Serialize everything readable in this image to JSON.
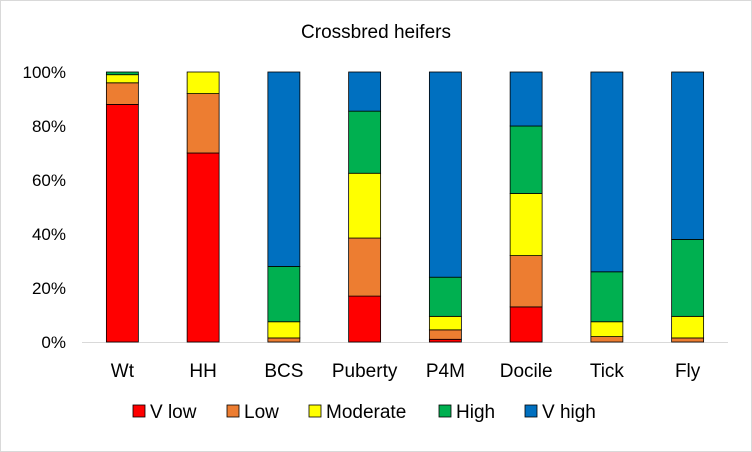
{
  "chart_data": {
    "type": "bar",
    "stacked": "percent",
    "title": "Crossbred heifers",
    "xlabel": "",
    "ylabel": "",
    "ylim": [
      0,
      100
    ],
    "y_ticks": [
      "0%",
      "20%",
      "40%",
      "60%",
      "80%",
      "100%"
    ],
    "grid": false,
    "legend_position": "bottom",
    "categories": [
      "Wt",
      "HH",
      "BCS",
      "Puberty",
      "P4M",
      "Docile",
      "Tick",
      "Fly"
    ],
    "series": [
      {
        "name": "V low",
        "color": "#ff0000",
        "values": [
          88,
          70,
          0,
          17,
          1,
          13,
          0,
          0
        ]
      },
      {
        "name": "Low",
        "color": "#ed7d31",
        "values": [
          8,
          22,
          1.5,
          21.5,
          3.5,
          19,
          2,
          1.5
        ]
      },
      {
        "name": "Moderate",
        "color": "#ffff00",
        "values": [
          3,
          8,
          6,
          24,
          5,
          23,
          5.5,
          8
        ]
      },
      {
        "name": "High",
        "color": "#00b050",
        "values": [
          1,
          0,
          20.5,
          23,
          14.5,
          25,
          18.5,
          28.5
        ]
      },
      {
        "name": "V high",
        "color": "#0070c0",
        "values": [
          0,
          0,
          72,
          14.5,
          76,
          20,
          74,
          62
        ]
      }
    ]
  }
}
